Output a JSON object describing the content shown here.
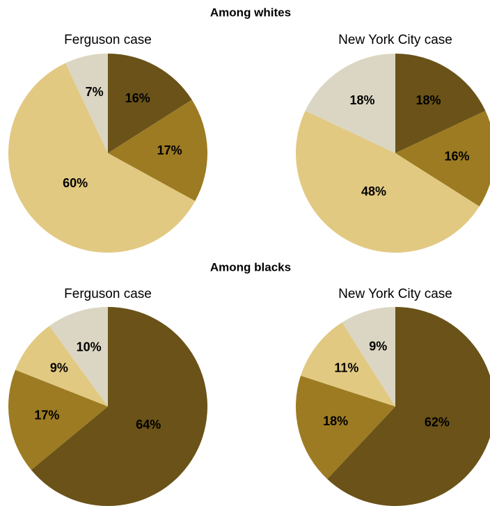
{
  "headings": [
    "Among whites",
    "Among blacks"
  ],
  "chart_data": [
    {
      "type": "pie",
      "title": "Ferguson case",
      "values": [
        16,
        17,
        60,
        7
      ],
      "value_labels": [
        "16%",
        "17%",
        "60%",
        "7%"
      ],
      "colors": [
        "#6a5218",
        "#9d7b22",
        "#e2c982",
        "#dbd6c3"
      ]
    },
    {
      "type": "pie",
      "title": "New York City case",
      "values": [
        18,
        16,
        48,
        18
      ],
      "value_labels": [
        "18%",
        "16%",
        "48%",
        "18%"
      ],
      "colors": [
        "#6a5218",
        "#9d7b22",
        "#e2c982",
        "#dbd6c3"
      ]
    },
    {
      "type": "pie",
      "title": "Ferguson case",
      "values": [
        64,
        17,
        9,
        10
      ],
      "value_labels": [
        "64%",
        "17%",
        "9%",
        "10%"
      ],
      "colors": [
        "#6a5218",
        "#9d7b22",
        "#e2c982",
        "#dbd6c3"
      ]
    },
    {
      "type": "pie",
      "title": "New York City case",
      "values": [
        62,
        18,
        11,
        9
      ],
      "value_labels": [
        "62%",
        "18%",
        "11%",
        "9%"
      ],
      "colors": [
        "#6a5218",
        "#9d7b22",
        "#e2c982",
        "#dbd6c3"
      ]
    }
  ]
}
